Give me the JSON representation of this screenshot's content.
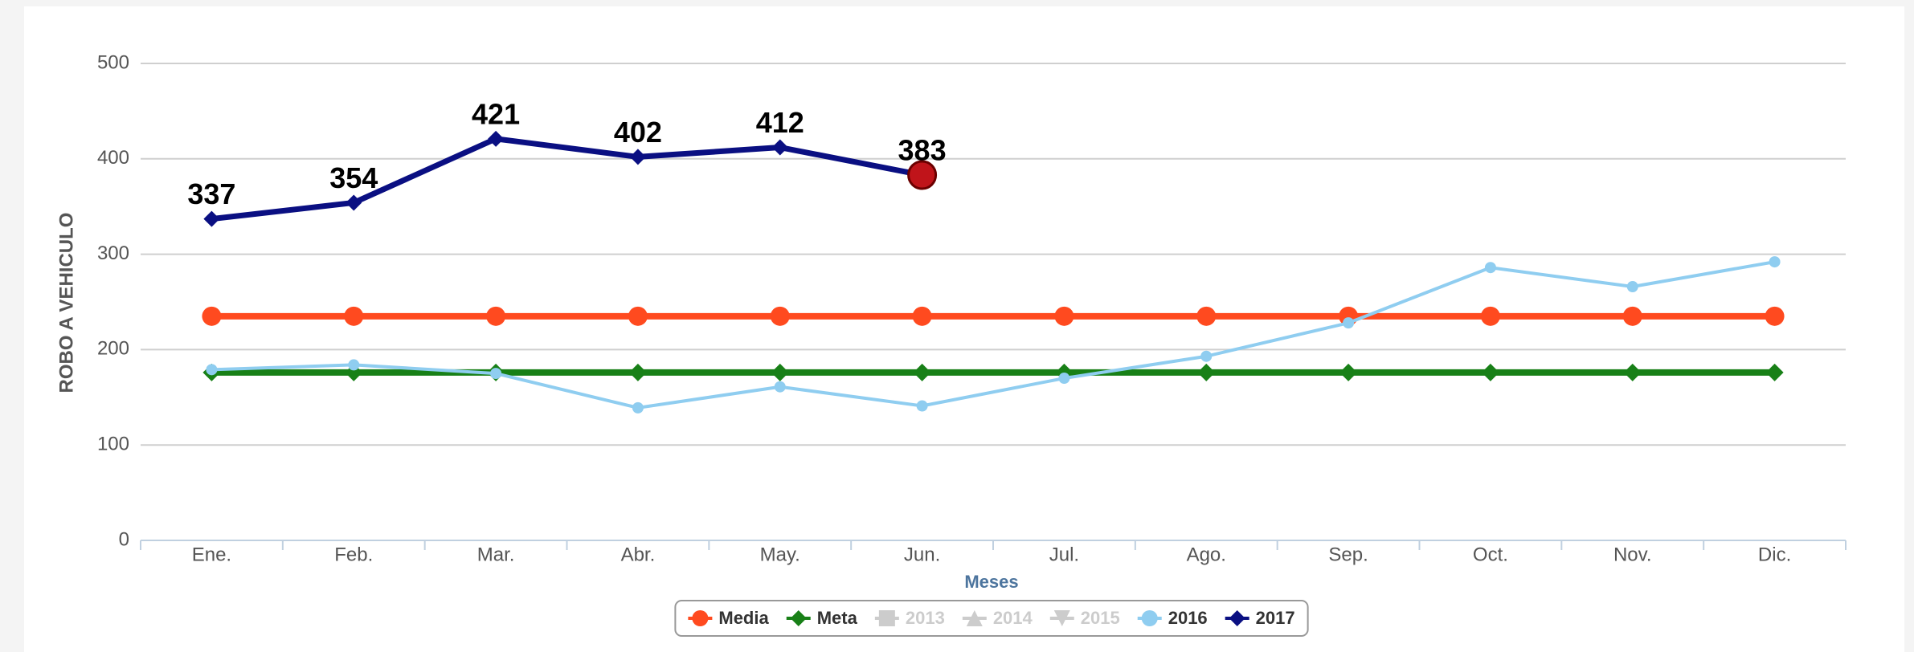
{
  "chart_data": {
    "type": "line",
    "y_label": "ROBO A VEHICULO",
    "x_label": "Meses",
    "categories": [
      "Ene.",
      "Feb.",
      "Mar.",
      "Abr.",
      "May.",
      "Jun.",
      "Jul.",
      "Ago.",
      "Sep.",
      "Oct.",
      "Nov.",
      "Dic."
    ],
    "ylim": [
      0,
      500
    ],
    "yticks": [
      0,
      100,
      200,
      300,
      400,
      500
    ],
    "grid": true,
    "series": [
      {
        "name": "Media",
        "color": "#ff4a1f",
        "marker": "circle",
        "visible": true,
        "values": [
          235,
          235,
          235,
          235,
          235,
          235,
          235,
          235,
          235,
          235,
          235,
          235
        ]
      },
      {
        "name": "Meta",
        "color": "#188017",
        "marker": "diamond",
        "visible": true,
        "values": [
          176,
          176,
          176,
          176,
          176,
          176,
          176,
          176,
          176,
          176,
          176,
          176
        ]
      },
      {
        "name": "2013",
        "color": "#cccccc",
        "marker": "square",
        "visible": false,
        "values": [
          null,
          null,
          null,
          null,
          null,
          null,
          null,
          null,
          null,
          null,
          null,
          null
        ]
      },
      {
        "name": "2014",
        "color": "#cccccc",
        "marker": "triangle",
        "visible": false,
        "values": [
          null,
          null,
          null,
          null,
          null,
          null,
          null,
          null,
          null,
          null,
          null,
          null
        ]
      },
      {
        "name": "2015",
        "color": "#cccccc",
        "marker": "triangle-down",
        "visible": false,
        "values": [
          null,
          null,
          null,
          null,
          null,
          null,
          null,
          null,
          null,
          null,
          null,
          null
        ]
      },
      {
        "name": "2016",
        "color": "#8fcdf0",
        "marker": "circle",
        "visible": true,
        "values": [
          179,
          184,
          175,
          139,
          161,
          141,
          170,
          193,
          228,
          286,
          266,
          292
        ]
      },
      {
        "name": "2017",
        "color": "#0a0f82",
        "marker": "diamond",
        "visible": true,
        "data_labels": true,
        "values": [
          337,
          354,
          421,
          402,
          412,
          383,
          null,
          null,
          null,
          null,
          null,
          null
        ]
      }
    ]
  }
}
